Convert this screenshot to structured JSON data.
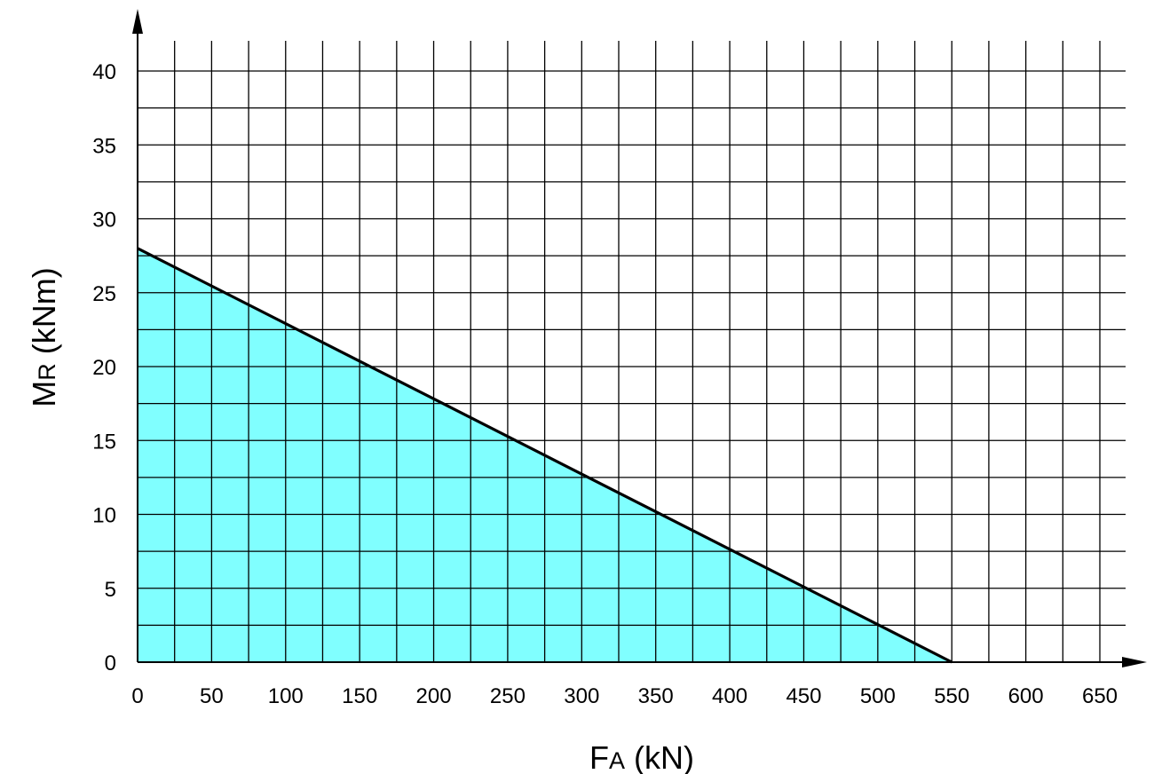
{
  "chart_data": {
    "type": "area",
    "xlabel": {
      "main": "F",
      "sub": "A",
      "unit": " (kN)"
    },
    "ylabel": {
      "main": "M",
      "sub": "R",
      "unit": " (kNm)"
    },
    "xlim": [
      0,
      650
    ],
    "ylim": [
      0,
      40
    ],
    "x_ticks": [
      "0",
      "50",
      "100",
      "150",
      "200",
      "250",
      "300",
      "350",
      "400",
      "450",
      "500",
      "550",
      "600",
      "650"
    ],
    "y_ticks": [
      "0",
      "5",
      "10",
      "15",
      "20",
      "25",
      "30",
      "35",
      "40"
    ],
    "x_grid_step": 25,
    "y_grid_step": 2.5,
    "grid": true,
    "series": [
      {
        "x": [
          0,
          550
        ],
        "y": [
          28,
          0
        ]
      }
    ],
    "colors": {
      "fill": "#80ffff",
      "line": "#000000",
      "grid": "#000000"
    }
  }
}
